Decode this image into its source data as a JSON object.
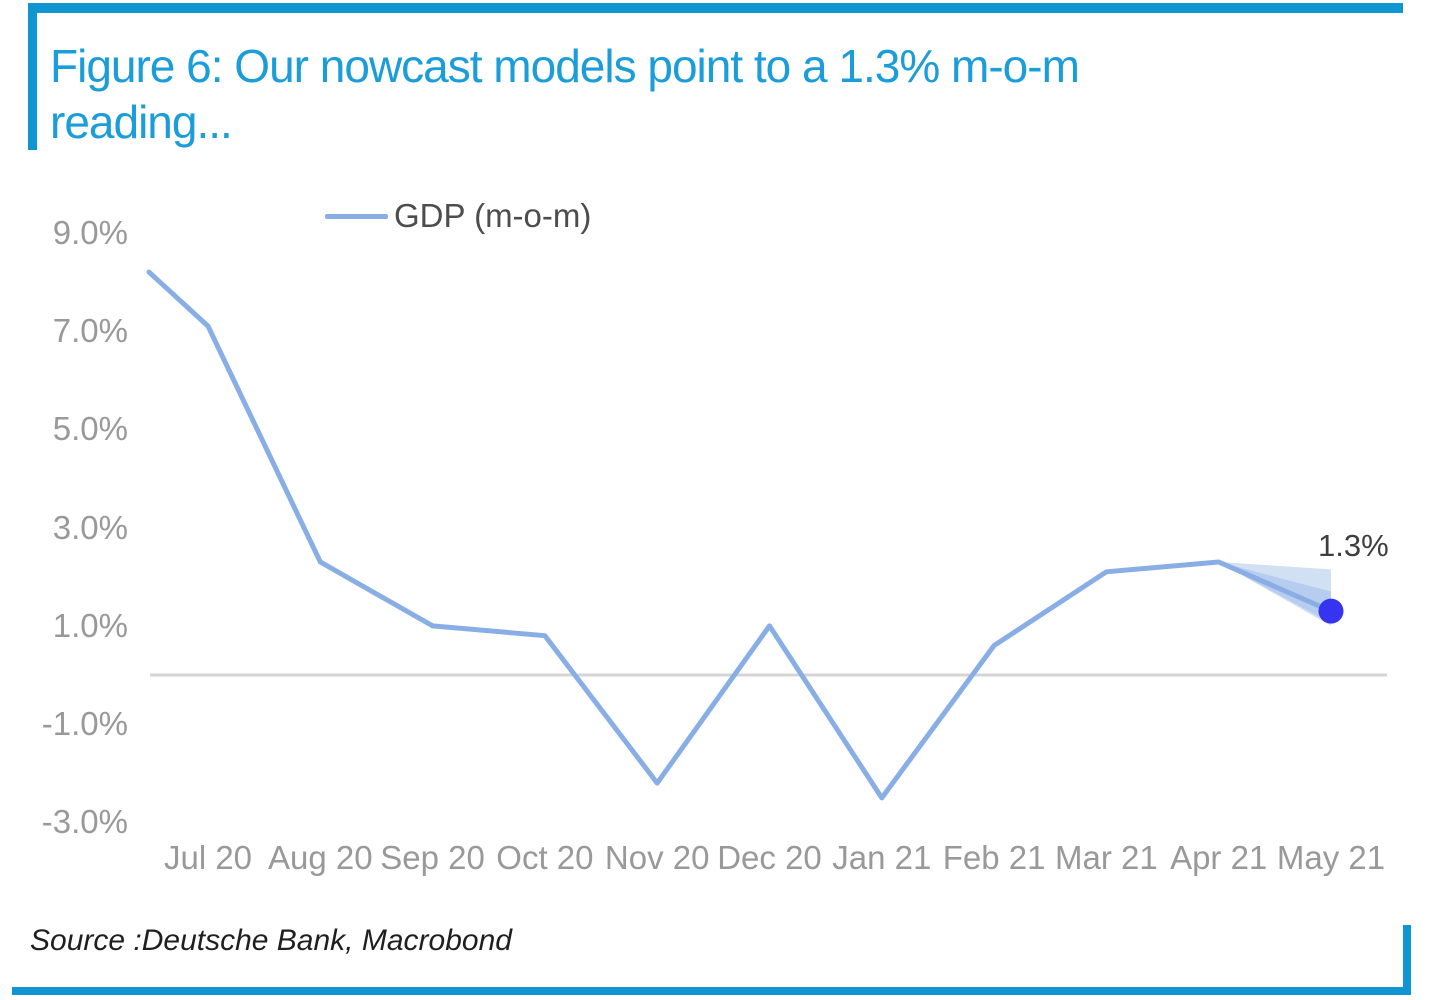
{
  "title": {
    "lines": [
      "Figure 6: Our nowcast models point to a 1.3% m-o-m",
      "reading..."
    ]
  },
  "legend": {
    "label": "GDP (m-o-m)"
  },
  "annotation": {
    "final_value_label": "1.3%"
  },
  "source": {
    "text": "Source :Deutsche Bank, Macrobond"
  },
  "colors": {
    "accent_bars": "#1094d2",
    "title_text": "#1b9dd9",
    "line": "#89aee6",
    "marker_dot": "#3634f0",
    "fan_outer": "#c7d8f1",
    "fan_inner": "#a9c4ec",
    "zero_line": "#d5d5d5",
    "axis_text": "#999999",
    "legend_text": "#4d4d4d",
    "annotation_text": "#3e3e3e"
  },
  "chart_data": {
    "type": "line",
    "title": "Figure 6: Our nowcast models point to a 1.3% m-o-m reading...",
    "categories": [
      "Jul 20",
      "Aug 20",
      "Sep 20",
      "Oct 20",
      "Nov 20",
      "Dec 20",
      "Jan 21",
      "Feb 21",
      "Mar 21",
      "Apr 21",
      "May 21"
    ],
    "series": [
      {
        "name": "GDP (m-o-m)",
        "values": [
          7.1,
          2.3,
          1.0,
          0.8,
          -2.2,
          1.0,
          -2.5,
          0.6,
          2.1,
          2.3,
          1.3
        ]
      }
    ],
    "leading_edge_value": 8.2,
    "yticks": [
      9.0,
      7.0,
      5.0,
      3.0,
      1.0,
      -1.0,
      -3.0
    ],
    "ytick_labels": [
      "9.0%",
      "7.0%",
      "5.0%",
      "3.0%",
      "1.0%",
      "-1.0%",
      "-3.0%"
    ],
    "ylim": [
      -3.5,
      9.5
    ],
    "grid": "zero-line-only",
    "legend_position": "top-center-left",
    "final_point": {
      "category": "May 21",
      "value": 1.3,
      "annotation": "1.3%",
      "marker": "filled-circle"
    },
    "uncertainty_fan": {
      "apex_category": "Apr 21",
      "apex_value": 2.3,
      "outer_range": [
        1.0,
        2.15
      ],
      "inner_range": [
        1.05,
        1.7
      ]
    }
  }
}
